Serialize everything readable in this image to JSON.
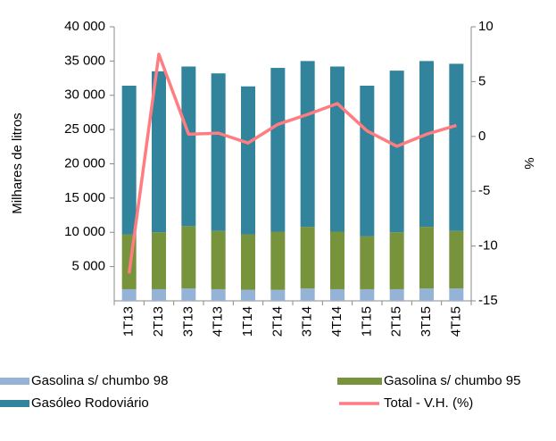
{
  "chart_data": {
    "type": "bar-line",
    "ylabel": "Milhares de litros",
    "y2label": "%",
    "categories": [
      "1T13",
      "2T13",
      "3T13",
      "4T13",
      "1T14",
      "2T14",
      "3T14",
      "4T14",
      "1T15",
      "2T15",
      "3T15",
      "4T15"
    ],
    "series": [
      {
        "name": "Gasolina s/ chumbo 98",
        "color": "#95b3d7",
        "values": [
          1700,
          1700,
          1800,
          1700,
          1600,
          1600,
          1800,
          1700,
          1700,
          1700,
          1800,
          1800
        ]
      },
      {
        "name": "Gasolina s/ chumbo 95",
        "color": "#77933c",
        "values": [
          8000,
          8300,
          9100,
          8500,
          8100,
          8500,
          9000,
          8400,
          7700,
          8300,
          9000,
          8400
        ]
      },
      {
        "name": "Gasóleo  Rodoviário",
        "color": "#31849b",
        "values": [
          21700,
          23500,
          23300,
          23000,
          21600,
          23900,
          24200,
          24100,
          22000,
          23600,
          24200,
          24400
        ]
      },
      {
        "name": "Total - V.H. (%)",
        "color": "#ff7c80",
        "axis": "y2",
        "values": [
          -12.5,
          7.5,
          0.2,
          0.3,
          -0.6,
          1.1,
          2.0,
          3.0,
          0.5,
          -0.9,
          0.2,
          1.0
        ]
      }
    ],
    "ylim": [
      0,
      40000
    ],
    "yticks": [
      {
        "value": 5000,
        "label": "5 000"
      },
      {
        "value": 10000,
        "label": "10 000"
      },
      {
        "value": 15000,
        "label": "15 000"
      },
      {
        "value": 20000,
        "label": "20 000"
      },
      {
        "value": 25000,
        "label": "25 000"
      },
      {
        "value": 30000,
        "label": "30 000"
      },
      {
        "value": 35000,
        "label": "35 000"
      },
      {
        "value": 40000,
        "label": "40 000"
      }
    ],
    "y2lim": [
      -15,
      10
    ],
    "y2ticks": [
      -15,
      -10,
      -5,
      0,
      5,
      10
    ],
    "grid": false,
    "legend": "bottom"
  }
}
